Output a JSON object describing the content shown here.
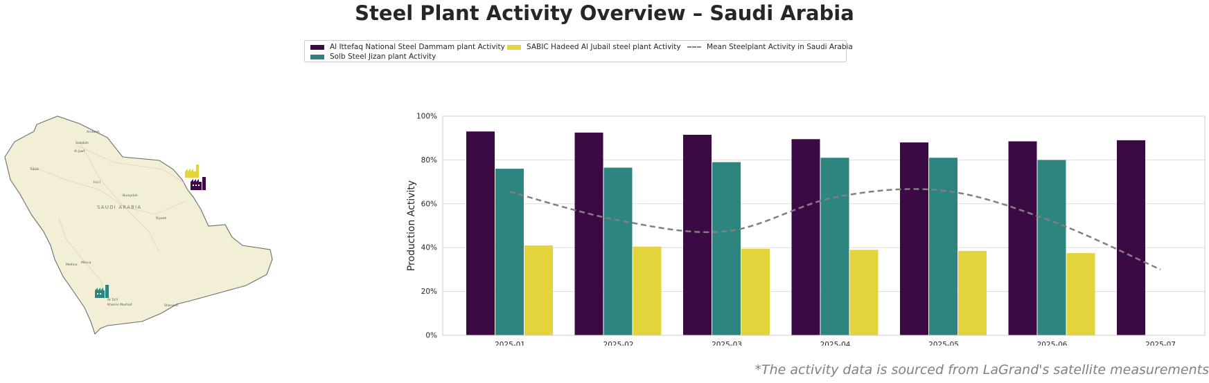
{
  "title": "Steel Plant Activity Overview – Saudi Arabia",
  "footnote": "*The activity data is sourced from LaGrand's satellite measurements",
  "map": {
    "country_label": "SAUDI ARABIA",
    "land_color": "#f3efd6",
    "cities": [
      "Arrowah",
      "Sakakah",
      "Al Jawf",
      "Tabuk",
      "Ha'il",
      "Buraydah",
      "Riyadh",
      "Medina",
      "Mecca",
      "At Ta'if",
      "Khamis Mushait",
      "Sharurah"
    ],
    "plants": [
      {
        "name": "Al Ittefaq National Steel Dammam plant",
        "color": "#3b0a45",
        "icon": "factory-icon"
      },
      {
        "name": "SABIC Hadeed Al Jubail steel plant",
        "color": "#e4d43c",
        "icon": "factory-icon"
      },
      {
        "name": "Solb Steel Jizan plant",
        "color": "#2e857f",
        "icon": "factory-icon"
      }
    ]
  },
  "chart_data": {
    "type": "bar",
    "ylabel": "Production Activity",
    "ylim": [
      0,
      100
    ],
    "yticks": [
      "0%",
      "20%",
      "40%",
      "60%",
      "80%",
      "100%"
    ],
    "grid": true,
    "legend_position": "top-center",
    "categories": [
      "2025-01",
      "2025-02",
      "2025-03",
      "2025-04",
      "2025-05",
      "2025-06",
      "2025-07"
    ],
    "series": [
      {
        "name": "Al Ittefaq National Steel Dammam plant Activity",
        "type": "bar",
        "color": "#3b0a45",
        "values": [
          93,
          92.5,
          91.5,
          89.5,
          88,
          88.5,
          89
        ]
      },
      {
        "name": "Solb Steel Jizan plant Activity",
        "type": "bar",
        "color": "#2e857f",
        "values": [
          76,
          76.5,
          79,
          81,
          81,
          80,
          null
        ]
      },
      {
        "name": "SABIC Hadeed Al Jubail steel plant Activity",
        "type": "bar",
        "color": "#e4d43c",
        "values": [
          41,
          40.5,
          39.5,
          39,
          38.5,
          37.5,
          null
        ]
      },
      {
        "name": "Mean Steelplant Activity in Saudi Arabia",
        "type": "line",
        "style": "dashed",
        "color": "#808080",
        "values": [
          65.5,
          52.5,
          47.5,
          63,
          66,
          52,
          30
        ]
      }
    ]
  }
}
